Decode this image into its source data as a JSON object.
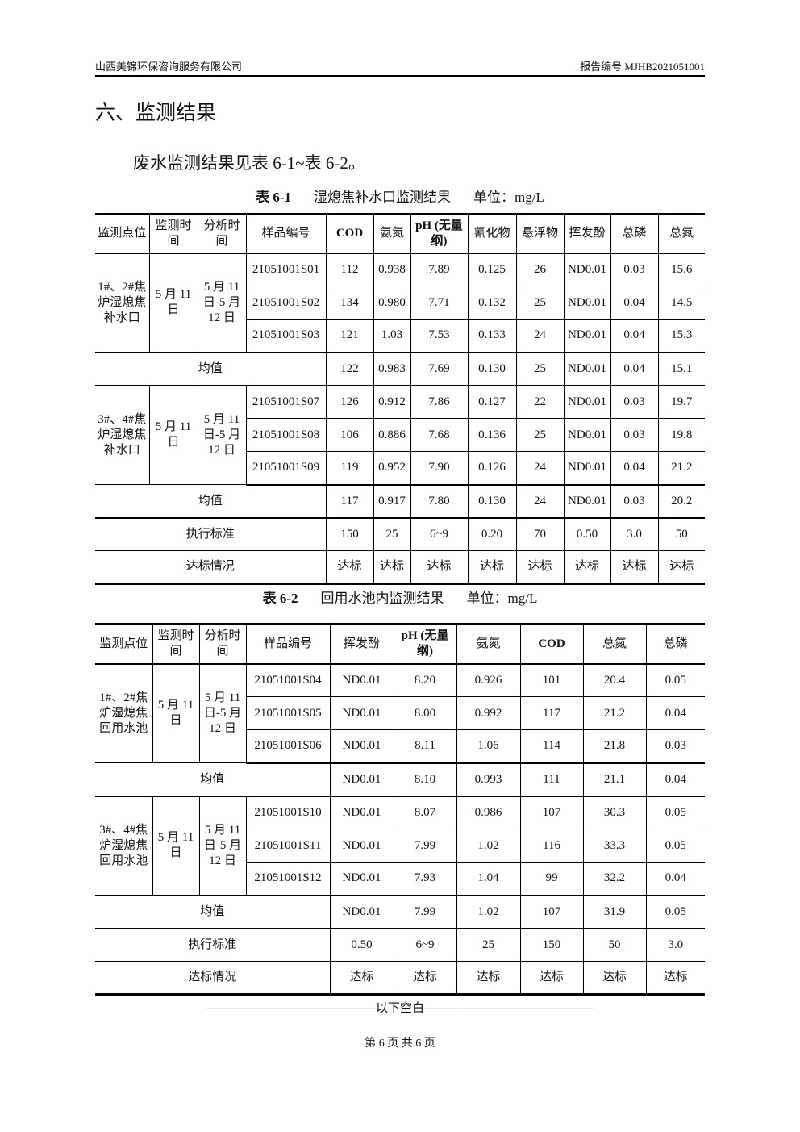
{
  "header": {
    "company": "山西美锦环保咨询服务有限公司",
    "report_no": "报告编号 MJHB2021051001"
  },
  "section_title": "六、监测结果",
  "intro": "废水监测结果见表 6-1~表 6-2。",
  "table1": {
    "caption_no": "表 6-1",
    "caption_title": "湿熄焦补水口监测结果",
    "caption_unit": "单位：mg/L",
    "headers": [
      "监测点位",
      "监测时间",
      "分析时间",
      "样品编号",
      "COD",
      "氨氮",
      "pH (无量纲)",
      "氰化物",
      "悬浮物",
      "挥发酚",
      "总磷",
      "总氮"
    ],
    "groups": [
      {
        "location": "1#、2#焦炉湿熄焦补水口",
        "time": "5 月 11 日",
        "analysis": "5 月 11 日-5 月 12 日",
        "samples": [
          [
            "21051001S01",
            "112",
            "0.938",
            "7.89",
            "0.125",
            "26",
            "ND0.01",
            "0.03",
            "15.6"
          ],
          [
            "21051001S02",
            "134",
            "0.980",
            "7.71",
            "0.132",
            "25",
            "ND0.01",
            "0.04",
            "14.5"
          ],
          [
            "21051001S03",
            "121",
            "1.03",
            "7.53",
            "0.133",
            "24",
            "ND0.01",
            "0.04",
            "15.3"
          ]
        ],
        "mean_label": "均值",
        "mean": [
          "122",
          "0.983",
          "7.69",
          "0.130",
          "25",
          "ND0.01",
          "0.04",
          "15.1"
        ]
      },
      {
        "location": "3#、4#焦炉湿熄焦补水口",
        "time": "5 月 11 日",
        "analysis": "5 月 11 日-5 月 12 日",
        "samples": [
          [
            "21051001S07",
            "126",
            "0.912",
            "7.86",
            "0.127",
            "22",
            "ND0.01",
            "0.03",
            "19.7"
          ],
          [
            "21051001S08",
            "106",
            "0.886",
            "7.68",
            "0.136",
            "25",
            "ND0.01",
            "0.03",
            "19.8"
          ],
          [
            "21051001S09",
            "119",
            "0.952",
            "7.90",
            "0.126",
            "24",
            "ND0.01",
            "0.04",
            "21.2"
          ]
        ],
        "mean_label": "均值",
        "mean": [
          "117",
          "0.917",
          "7.80",
          "0.130",
          "24",
          "ND0.01",
          "0.03",
          "20.2"
        ]
      }
    ],
    "standard_label": "执行标准",
    "standard": [
      "150",
      "25",
      "6~9",
      "0.20",
      "70",
      "0.50",
      "3.0",
      "50"
    ],
    "compliance_label": "达标情况",
    "compliance": [
      "达标",
      "达标",
      "达标",
      "达标",
      "达标",
      "达标",
      "达标",
      "达标"
    ]
  },
  "table2": {
    "caption_no": "表 6-2",
    "caption_title": "回用水池内监测结果",
    "caption_unit": "单位：mg/L",
    "headers": [
      "监测点位",
      "监测时间",
      "分析时间",
      "样品编号",
      "挥发酚",
      "pH (无量纲)",
      "氨氮",
      "COD",
      "总氮",
      "总磷"
    ],
    "groups": [
      {
        "location": "1#、2#焦炉湿熄焦回用水池",
        "time": "5 月 11 日",
        "analysis": "5 月 11 日-5 月 12 日",
        "samples": [
          [
            "21051001S04",
            "ND0.01",
            "8.20",
            "0.926",
            "101",
            "20.4",
            "0.05"
          ],
          [
            "21051001S05",
            "ND0.01",
            "8.00",
            "0.992",
            "117",
            "21.2",
            "0.04"
          ],
          [
            "21051001S06",
            "ND0.01",
            "8.11",
            "1.06",
            "114",
            "21.8",
            "0.03"
          ]
        ],
        "mean_label": "均值",
        "mean": [
          "ND0.01",
          "8.10",
          "0.993",
          "111",
          "21.1",
          "0.04"
        ]
      },
      {
        "location": "3#、4#焦炉湿熄焦回用水池",
        "time": "5 月 11 日",
        "analysis": "5 月 11 日-5 月 12 日",
        "samples": [
          [
            "21051001S10",
            "ND0.01",
            "8.07",
            "0.986",
            "107",
            "30.3",
            "0.05"
          ],
          [
            "21051001S11",
            "ND0.01",
            "7.99",
            "1.02",
            "116",
            "33.3",
            "0.05"
          ],
          [
            "21051001S12",
            "ND0.01",
            "7.93",
            "1.04",
            "99",
            "32.2",
            "0.04"
          ]
        ],
        "mean_label": "均值",
        "mean": [
          "ND0.01",
          "7.99",
          "1.02",
          "107",
          "31.9",
          "0.05"
        ]
      }
    ],
    "standard_label": "执行标准",
    "standard": [
      "0.50",
      "6~9",
      "25",
      "150",
      "50",
      "3.0"
    ],
    "compliance_label": "达标情况",
    "compliance": [
      "达标",
      "达标",
      "达标",
      "达标",
      "达标",
      "达标"
    ]
  },
  "end_note": "——————————————以下空白——————————————",
  "footer": "第 6 页 共 6 页"
}
